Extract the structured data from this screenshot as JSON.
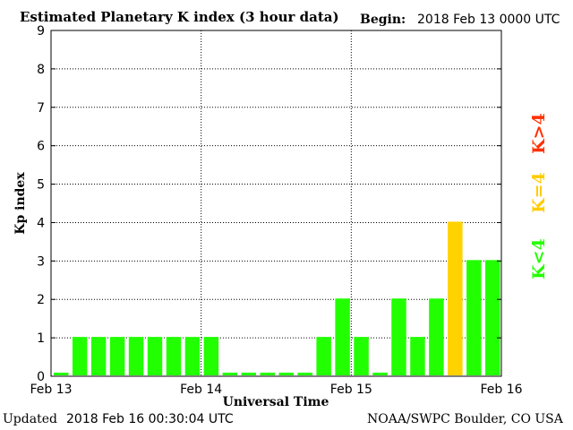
{
  "header": {
    "title": "Estimated Planetary K index (3 hour data)",
    "begin_label": "Begin:",
    "begin_value": "2018 Feb 13 0000 UTC"
  },
  "footer": {
    "updated_label": "Updated",
    "updated_value": "2018 Feb 16 00:30:04 UTC",
    "credit": "NOAA/SWPC Boulder, CO USA"
  },
  "legend": {
    "high": "K>4",
    "equal": "K=4",
    "low": "K<4"
  },
  "colors": {
    "low": "#22ff00",
    "equal": "#ffd200",
    "high": "#ff3000",
    "equal_legend": "#ffcc00"
  },
  "chart_data": {
    "type": "bar",
    "title": "Estimated Planetary K index (3 hour data)",
    "xlabel": "Universal Time",
    "ylabel": "Kp index",
    "ylim": [
      0,
      9
    ],
    "yticks": [
      "0",
      "1",
      "2",
      "3",
      "4",
      "5",
      "6",
      "7",
      "8",
      "9"
    ],
    "x_tick_labels": [
      "Feb 13",
      "Feb 14",
      "Feb 15",
      "Feb 16"
    ],
    "interval_hours": 3,
    "grid": "dotted",
    "values": [
      0,
      1,
      1,
      1,
      1,
      1,
      1,
      1,
      1,
      0,
      0,
      0,
      0,
      0,
      1,
      2,
      1,
      0,
      2,
      1,
      2,
      4,
      3,
      3
    ]
  }
}
